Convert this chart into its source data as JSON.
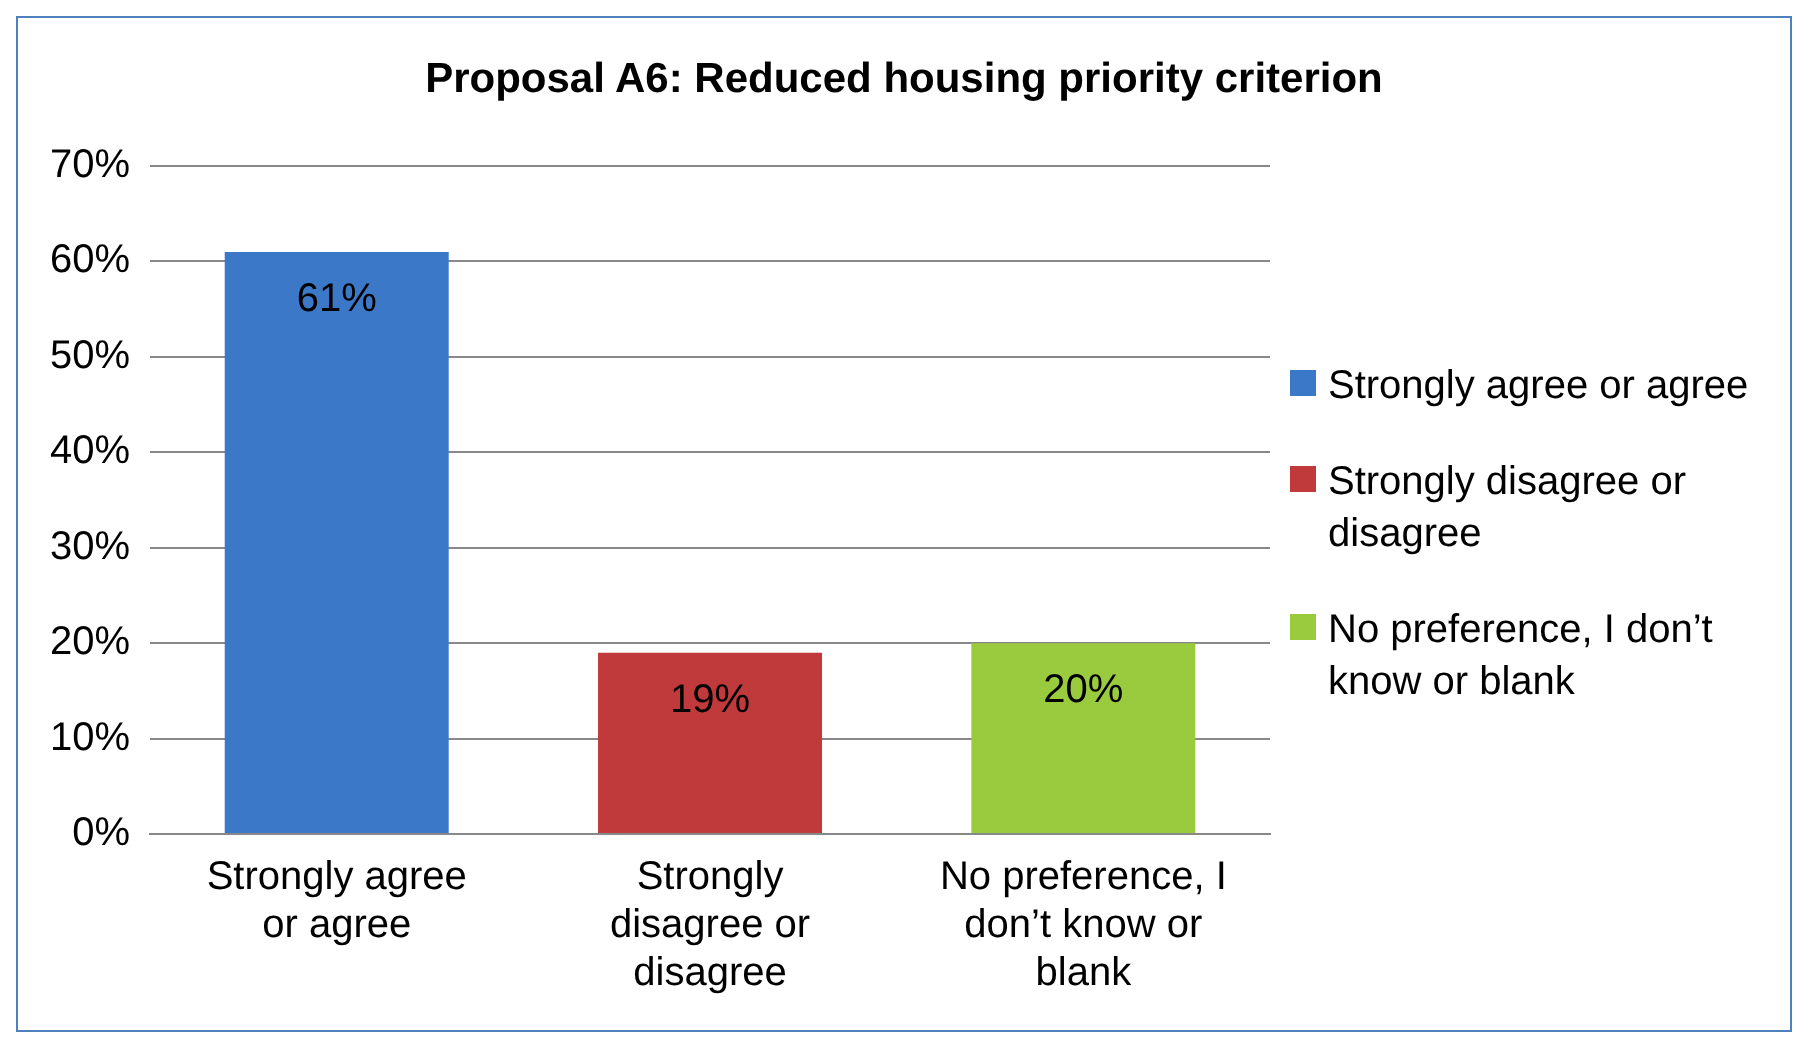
{
  "chart_data": {
    "type": "bar",
    "title": "Proposal A6: Reduced housing priority criterion",
    "categories": [
      "Strongly agree or agree",
      "Strongly disagree or disagree",
      "No preference, I don’t know or blank"
    ],
    "series": [
      {
        "name": "Strongly agree or agree",
        "color": "#3c78c8",
        "values": [
          61,
          null,
          null
        ],
        "value_labels": [
          "61%",
          null,
          null
        ]
      },
      {
        "name": "Strongly disagree or disagree",
        "color": "#c0393b",
        "values": [
          null,
          19,
          null
        ],
        "value_labels": [
          null,
          "19%",
          null
        ]
      },
      {
        "name": "No preference, I don’t know or blank",
        "color": "#9acb3e",
        "values": [
          null,
          null,
          20
        ],
        "value_labels": [
          null,
          null,
          "20%"
        ]
      }
    ],
    "ylim": [
      0,
      70
    ],
    "yticks": [
      {
        "value": 0,
        "label": "0%"
      },
      {
        "value": 10,
        "label": "10%"
      },
      {
        "value": 20,
        "label": "20%"
      },
      {
        "value": 30,
        "label": "30%"
      },
      {
        "value": 40,
        "label": "40%"
      },
      {
        "value": 50,
        "label": "50%"
      },
      {
        "value": 60,
        "label": "60%"
      },
      {
        "value": 70,
        "label": "70%"
      }
    ],
    "grid": "y",
    "legend": "right"
  }
}
